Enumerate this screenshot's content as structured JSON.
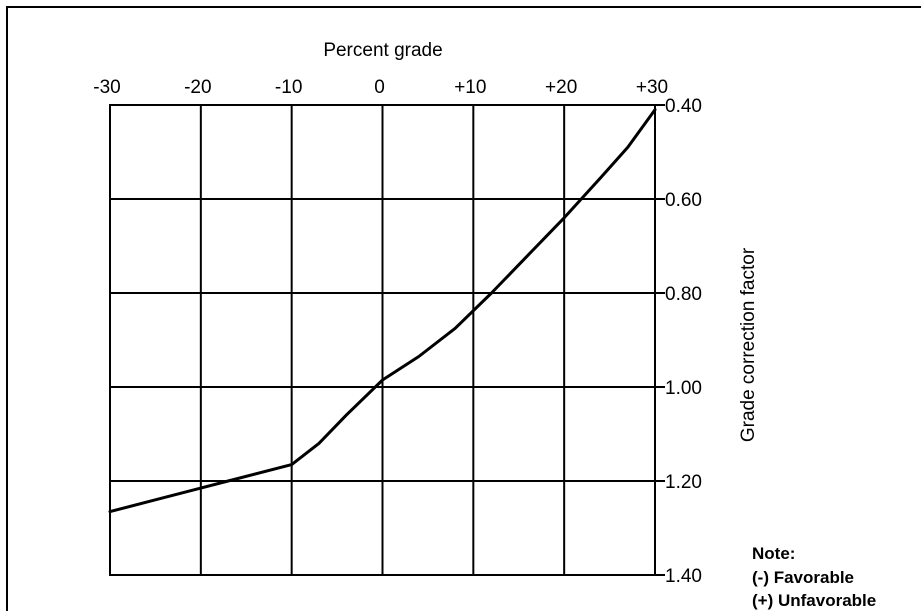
{
  "chart_data": {
    "type": "line",
    "xlabel": "Percent grade",
    "ylabel": "Grade correction factor",
    "xlim": [
      -30,
      30
    ],
    "ylim": [
      0.4,
      1.4
    ],
    "y_inverted": true,
    "grid": true,
    "x_tick_values": [
      -30,
      -20,
      -10,
      0,
      10,
      20,
      30
    ],
    "x_tick_labels": [
      "-30",
      "-20",
      "-10",
      "0",
      "+10",
      "+20",
      "+30"
    ],
    "y_tick_values": [
      0.4,
      0.6,
      0.8,
      1.0,
      1.2,
      1.4
    ],
    "y_tick_labels": [
      "0.40",
      "0.60",
      "0.80",
      "1.00",
      "1.20",
      "1.40"
    ],
    "series": [
      {
        "x": [
          -30,
          -25,
          -20,
          -17,
          -10,
          -7,
          -4,
          0,
          4,
          8,
          12,
          16,
          20,
          24,
          27,
          30
        ],
        "y": [
          1.265,
          1.24,
          1.215,
          1.2,
          1.165,
          1.12,
          1.06,
          0.985,
          0.935,
          0.875,
          0.8,
          0.72,
          0.64,
          0.555,
          0.49,
          0.41
        ]
      }
    ],
    "note": {
      "title": "Note:",
      "lines": [
        "(-) Favorable",
        "(+) Unfavorable"
      ]
    }
  }
}
